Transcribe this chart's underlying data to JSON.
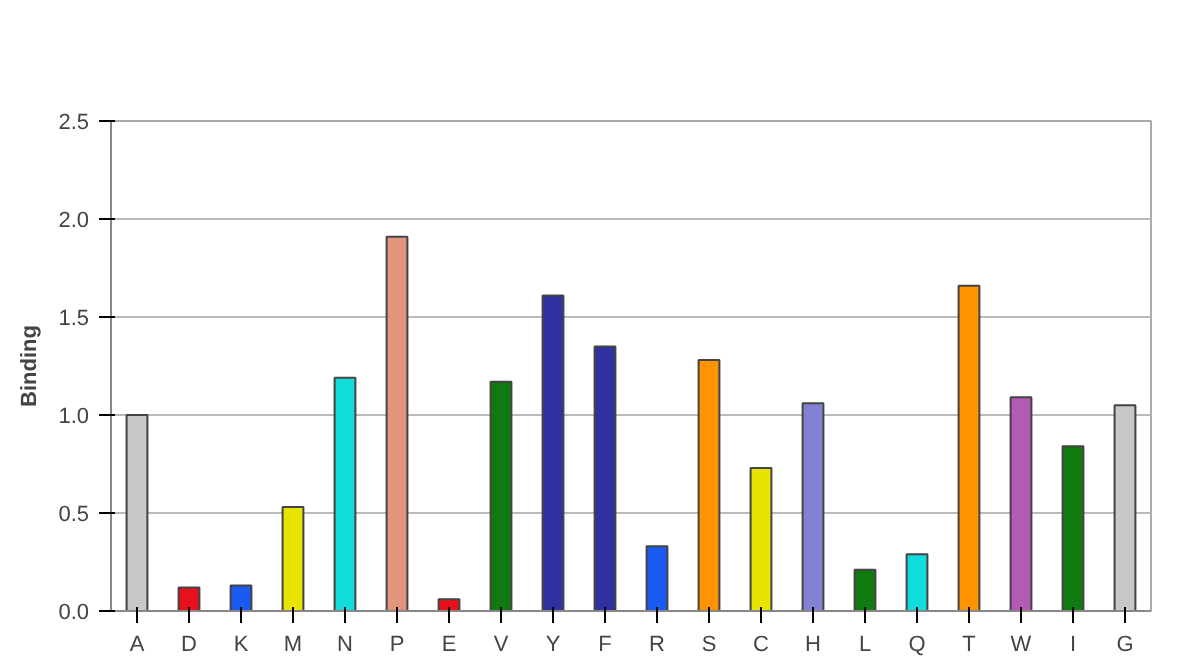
{
  "chart_data": {
    "type": "bar",
    "ylabel": "Binding",
    "categories": [
      "A",
      "D",
      "K",
      "M",
      "N",
      "P",
      "E",
      "V",
      "Y",
      "F",
      "R",
      "S",
      "C",
      "H",
      "L",
      "Q",
      "T",
      "W",
      "I",
      "G"
    ],
    "values": [
      1.0,
      0.12,
      0.13,
      0.53,
      1.19,
      1.91,
      0.06,
      1.17,
      1.61,
      1.35,
      0.33,
      1.28,
      0.73,
      1.06,
      0.21,
      0.29,
      1.66,
      1.09,
      0.84,
      1.05
    ],
    "colors": [
      "#c8c8c8",
      "#e8101a",
      "#1a5af0",
      "#e8e400",
      "#10dcdc",
      "#e0957e",
      "#e8101a",
      "#107a10",
      "#3030a0",
      "#3030a0",
      "#1a5af0",
      "#ff9400",
      "#e8e400",
      "#8282d2",
      "#107a10",
      "#10dcdc",
      "#ff9400",
      "#b45ab4",
      "#107a10",
      "#c8c8c8"
    ],
    "ylim": [
      0,
      2.5
    ],
    "yticks": [
      {
        "value": 0,
        "label": "0.0"
      },
      {
        "value": 0.5,
        "label": "0.5"
      },
      {
        "value": 1,
        "label": "1.0"
      },
      {
        "value": 1.5,
        "label": "1.5"
      },
      {
        "value": 2,
        "label": "2.0"
      },
      {
        "value": 2.5,
        "label": "2.5"
      }
    ],
    "grid": "y"
  }
}
